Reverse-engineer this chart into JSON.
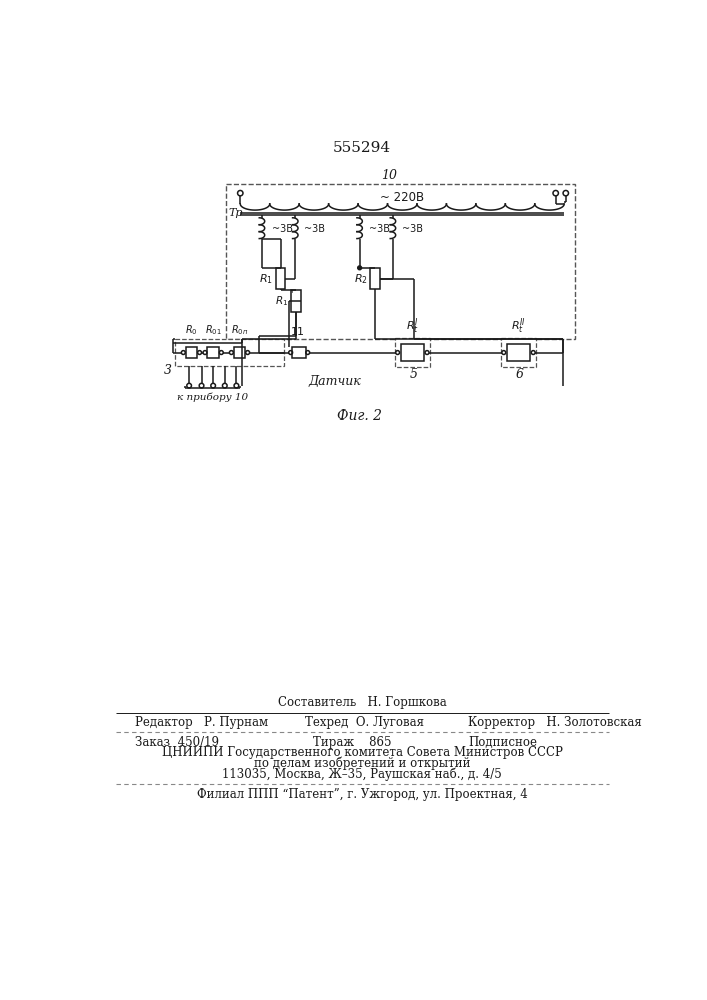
{
  "bg_color": "#ffffff",
  "line_color": "#1a1a1a",
  "dashed_color": "#555555",
  "title_text": "555294",
  "footer_lines": [
    "Составитель   Н. Горшкова",
    "Редактор   Р. Пурнам",
    "Техред  О. Луговая",
    "Корректор   Н. Золотовская",
    "Заказ  450/19",
    "Тираж    865",
    "Подписное",
    "ЦНИИПИ Государственного комитета Совета Министров СССР",
    "по делам изобретений и открытий",
    "113035, Москва, Ж–35, Раушская наб., д. 4/5",
    "Филиал ППП “Патент”, г. Ужгород, ул. Проектная, 4"
  ]
}
